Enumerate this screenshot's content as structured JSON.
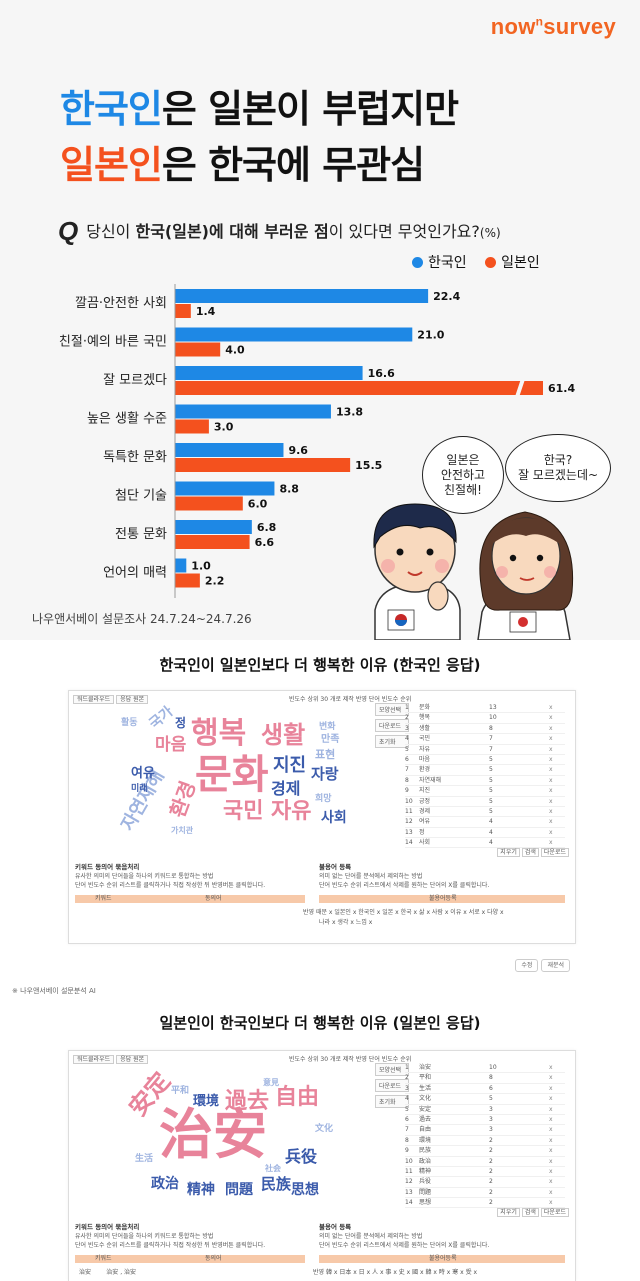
{
  "brand": {
    "logo_main": "now",
    "logo_sup": "n",
    "logo_tail": "survey"
  },
  "headline": {
    "line1_highlight": "한국인",
    "line1_rest": "은 일본이 부럽지만",
    "line2_highlight": "일본인",
    "line2_rest": "은 한국에 무관심"
  },
  "question": {
    "mark": "Q",
    "pre": "당신이 ",
    "bold1": "한국(일본)에 대해 부러운 점",
    "post": "이 있다면 무엇인가요?",
    "unit": "(%)"
  },
  "legend": {
    "korean": "한국인",
    "japanese": "일본인"
  },
  "colors": {
    "korean": "#1e88e5",
    "japanese": "#f4511e",
    "brand": "#f26522"
  },
  "chart_data": {
    "type": "bar",
    "orientation": "horizontal",
    "categories": [
      "깔끔·안전한 사회",
      "친절·예의 바른 국민",
      "잘 모르겠다",
      "높은 생활 수준",
      "독특한 문화",
      "첨단 기술",
      "전통 문화",
      "언어의 매력"
    ],
    "series": [
      {
        "name": "한국인",
        "values": [
          22.4,
          21.0,
          16.6,
          13.8,
          9.6,
          8.8,
          6.8,
          1.0
        ]
      },
      {
        "name": "일본인",
        "values": [
          1.4,
          4.0,
          61.4,
          3.0,
          15.5,
          6.0,
          6.6,
          2.2
        ]
      }
    ],
    "value_labels": {
      "한국인": [
        "22.4",
        "21.0",
        "16.6",
        "13.8",
        "9.6",
        "8.8",
        "6.8",
        "1.0"
      ],
      "일본인": [
        "1.4",
        "4.0",
        "61.4",
        "3.0",
        "15.5",
        "6.0",
        "6.6",
        "2.2"
      ]
    },
    "axis_break": {
      "category": "잘 모르겠다",
      "series": "일본인"
    }
  },
  "bubbles": {
    "korean_kid": [
      "일본은",
      "안전하고",
      "친절해!"
    ],
    "japanese_kid": [
      "한국?",
      "잘 모르겠는데~"
    ]
  },
  "source": "나우앤서베이 설문조사 24.7.24~24.7.26",
  "section1": {
    "title": "한국인이 일본인보다 더 행복한 이유 (한국인 응답)",
    "toolbar": [
      "워드클라우드",
      "응답 원본"
    ],
    "meta": "빈도수 상위   30   개로 제작  반영  단어 빈도수 순위",
    "side_buttons": [
      "모양선택",
      "다운로드",
      "초기화"
    ],
    "cloud": [
      {
        "text": "문화",
        "color": "#e8839a"
      },
      {
        "text": "행복",
        "color": "#e8839a"
      },
      {
        "text": "생활",
        "color": "#e8839a"
      },
      {
        "text": "국민",
        "color": "#e8839a"
      },
      {
        "text": "자유",
        "color": "#e8839a"
      },
      {
        "text": "자연재해",
        "color": "#9fb4e0"
      },
      {
        "text": "환경",
        "color": "#e8839a"
      },
      {
        "text": "마음",
        "color": "#e8839a"
      },
      {
        "text": "지진",
        "color": "#3b5bab"
      },
      {
        "text": "경제",
        "color": "#3b5bab"
      },
      {
        "text": "자랑",
        "color": "#3b5bab"
      },
      {
        "text": "사회",
        "color": "#3b5bab"
      },
      {
        "text": "여유",
        "color": "#3b5bab"
      },
      {
        "text": "표현",
        "color": "#9fb4e0"
      },
      {
        "text": "만족",
        "color": "#9fb4e0"
      },
      {
        "text": "희망",
        "color": "#9fb4e0"
      },
      {
        "text": "국가",
        "color": "#9fb4e0"
      },
      {
        "text": "미래",
        "color": "#3b5bab"
      },
      {
        "text": "활동",
        "color": "#9fb4e0"
      },
      {
        "text": "정",
        "color": "#3b5bab"
      },
      {
        "text": "변화",
        "color": "#9fb4e0"
      },
      {
        "text": "가치관",
        "color": "#9fb4e0"
      }
    ],
    "freq_rows": [
      {
        "rank": "1",
        "word": "문화",
        "count": "13"
      },
      {
        "rank": "2",
        "word": "행복",
        "count": "10"
      },
      {
        "rank": "3",
        "word": "생활",
        "count": "8"
      },
      {
        "rank": "4",
        "word": "국민",
        "count": "7"
      },
      {
        "rank": "5",
        "word": "자유",
        "count": "7"
      },
      {
        "rank": "6",
        "word": "마음",
        "count": "5"
      },
      {
        "rank": "7",
        "word": "환경",
        "count": "5"
      },
      {
        "rank": "8",
        "word": "자연재해",
        "count": "5"
      },
      {
        "rank": "9",
        "word": "지진",
        "count": "5"
      },
      {
        "rank": "10",
        "word": "긍정",
        "count": "5"
      },
      {
        "rank": "11",
        "word": "경제",
        "count": "5"
      },
      {
        "rank": "12",
        "word": "여유",
        "count": "4"
      },
      {
        "rank": "13",
        "word": "정",
        "count": "4"
      },
      {
        "rank": "14",
        "word": "사회",
        "count": "4"
      }
    ],
    "freq_buttons": [
      "지우기",
      "검색",
      "다운로드"
    ],
    "synonym_title": "키워드 동의어 묶음처리",
    "synonym_desc1": "유사한 의미의 단어들을 하나의 키워드로 통합하는 방법",
    "synonym_desc2": "단어 빈도수 순위 리스트를 클릭하거나 직접 작성한 뒤 반영버튼 클릭합니다.",
    "synonym_cols": [
      "키워드",
      "동의어"
    ],
    "stop_title": "불용어 등록",
    "stop_desc1": "의미 없는 단어를 분석에서 제외하는 방법",
    "stop_desc2": "단어 빈도수 순위 리스트에서 삭제를 원하는 단어의 X를 클릭합니다.",
    "stop_col": "불용어등록",
    "stop_tags": "반영  때문 x  일본인 x  한국인 x  일본 x  한국 x  삶 x  사람 x  이유 x  서로 x  다양 x",
    "stop_tags2": "나라 x  생각 x  느낌 x",
    "mini_buttons": [
      "수정",
      "재분석"
    ]
  },
  "footnote": "※ 나우앤서베이 설문분석 AI",
  "section2": {
    "title": "일본인이 한국인보다 더 행복한 이유 (일본인 응답)",
    "toolbar": [
      "워드클라우드",
      "응답 원본"
    ],
    "meta": "빈도수 상위   30   개로 제작  반영  단어 빈도수 순위",
    "side_buttons": [
      "모양선택",
      "다운로드",
      "초기화"
    ],
    "cloud": [
      {
        "text": "治安",
        "color": "#e8839a"
      },
      {
        "text": "安定",
        "color": "#e8839a"
      },
      {
        "text": "過去",
        "color": "#e8839a"
      },
      {
        "text": "自由",
        "color": "#e8839a"
      },
      {
        "text": "環境",
        "color": "#3b5bab"
      },
      {
        "text": "兵役",
        "color": "#3b5bab"
      },
      {
        "text": "政治",
        "color": "#3b5bab"
      },
      {
        "text": "精神",
        "color": "#3b5bab"
      },
      {
        "text": "問題",
        "color": "#3b5bab"
      },
      {
        "text": "民族",
        "color": "#3b5bab"
      },
      {
        "text": "思想",
        "color": "#3b5bab"
      },
      {
        "text": "平和",
        "color": "#9fb4e0"
      },
      {
        "text": "文化",
        "color": "#9fb4e0"
      },
      {
        "text": "生活",
        "color": "#9fb4e0"
      },
      {
        "text": "意見",
        "color": "#9fb4e0"
      },
      {
        "text": "社会",
        "color": "#9fb4e0"
      }
    ],
    "freq_rows": [
      {
        "rank": "1",
        "word": "治安",
        "count": "10"
      },
      {
        "rank": "2",
        "word": "平和",
        "count": "8"
      },
      {
        "rank": "3",
        "word": "生活",
        "count": "6"
      },
      {
        "rank": "4",
        "word": "文化",
        "count": "5"
      },
      {
        "rank": "5",
        "word": "安定",
        "count": "3"
      },
      {
        "rank": "6",
        "word": "過去",
        "count": "3"
      },
      {
        "rank": "7",
        "word": "自由",
        "count": "3"
      },
      {
        "rank": "8",
        "word": "環境",
        "count": "2"
      },
      {
        "rank": "9",
        "word": "民族",
        "count": "2"
      },
      {
        "rank": "10",
        "word": "政治",
        "count": "2"
      },
      {
        "rank": "11",
        "word": "精神",
        "count": "2"
      },
      {
        "rank": "12",
        "word": "兵役",
        "count": "2"
      },
      {
        "rank": "13",
        "word": "問題",
        "count": "2"
      },
      {
        "rank": "14",
        "word": "思想",
        "count": "2"
      }
    ],
    "freq_buttons": [
      "지우기",
      "검색",
      "다운로드"
    ],
    "synonym_title": "키워드 동의어 묶음처리",
    "synonym_desc1": "유사한 의미의 단어들을 하나의 키워드로 통합하는 방법",
    "synonym_desc2": "단어 빈도수 순위 리스트를 클릭하거나 직접 작성한 뒤 반영버튼 클릭합니다.",
    "synonym_cols": [
      "키워드",
      "동의어"
    ],
    "stop_title": "불용어 등록",
    "stop_desc1": "의미 없는 단어를 분석에서 제외하는 방법",
    "stop_desc2": "단어 빈도수 순위 리스트에서 삭제를 원하는 단어의 X를 클릭합니다.",
    "stop_col": "불용어등록",
    "stop_tags": "반영  韓 x  日本 x  日 x  人 x  事 x  史 x  國 x  韓 x  時 x  寒 x  受 x",
    "synonym_row": [
      "治安",
      "治安 , 治安"
    ]
  }
}
